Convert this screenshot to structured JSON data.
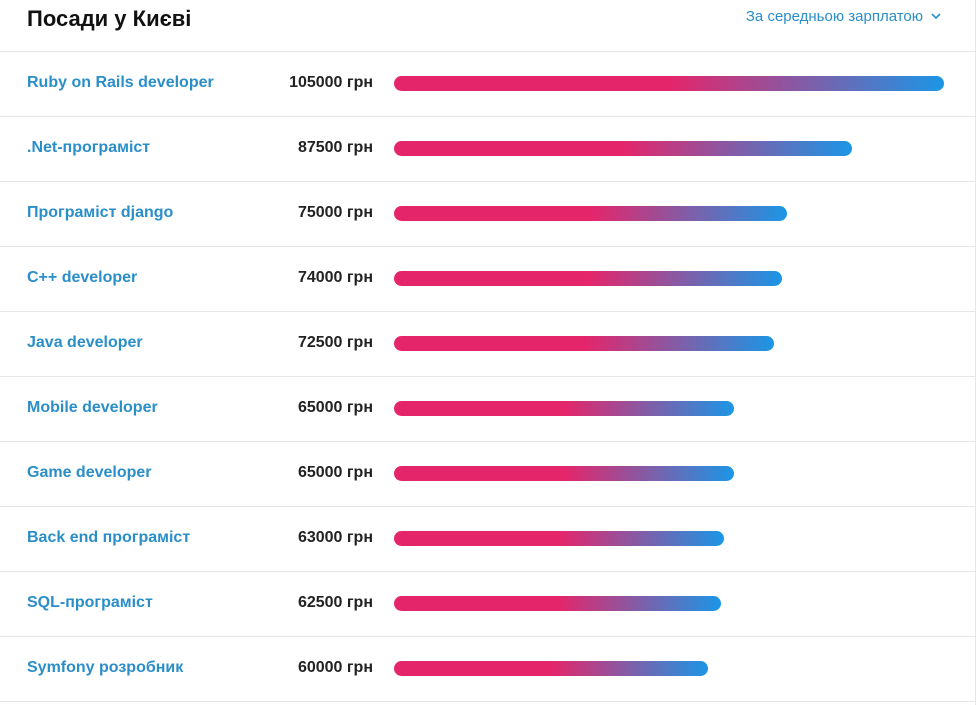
{
  "header": {
    "title": "Посади у Києві",
    "sort_label": "За середньою зарплатою"
  },
  "colors": {
    "link": "#2a8ec9",
    "bar_start": "#e5256a",
    "bar_end": "#1b96e6"
  },
  "icons": {
    "sort": "chevron-down-icon"
  },
  "chart_data": {
    "type": "bar",
    "orientation": "horizontal",
    "categories": [
      "Ruby on Rails developer",
      ".Net-програміст",
      "Програміст django",
      "C++ developer",
      "Java developer",
      "Mobile developer",
      "Game developer",
      "Back end програміст",
      "SQL-програміст",
      "Symfony розробник"
    ],
    "values": [
      105000,
      87500,
      75000,
      74000,
      72500,
      65000,
      65000,
      63000,
      62500,
      60000
    ],
    "value_labels": [
      "105000 грн",
      "87500 грн",
      "75000 грн",
      "74000 грн",
      "72500 грн",
      "65000 грн",
      "65000 грн",
      "63000 грн",
      "62500 грн",
      "60000 грн"
    ],
    "unit": "грн",
    "xlim": [
      0,
      105000
    ],
    "grid": false,
    "legend": "none"
  }
}
